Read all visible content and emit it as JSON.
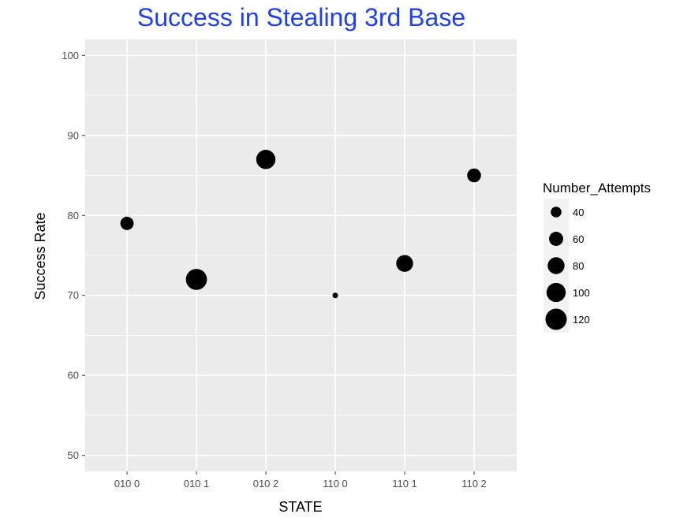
{
  "chart_data": {
    "type": "scatter",
    "title": "Success in Stealing 3rd Base",
    "xlabel": "STATE",
    "ylabel": "Success Rate",
    "categories": [
      "010 0",
      "010 1",
      "010 2",
      "110 0",
      "110 1",
      "110 2"
    ],
    "points": [
      {
        "x": "010 0",
        "y": 79,
        "size": 55
      },
      {
        "x": "010 1",
        "y": 72,
        "size": 118
      },
      {
        "x": "010 2",
        "y": 87,
        "size": 100
      },
      {
        "x": "110 0",
        "y": 70,
        "size": 20
      },
      {
        "x": "110 1",
        "y": 74,
        "size": 80
      },
      {
        "x": "110 2",
        "y": 85,
        "size": 58
      }
    ],
    "ylim": [
      48,
      102
    ],
    "yticks": [
      50,
      60,
      70,
      80,
      90,
      100
    ],
    "grid": true,
    "legend": {
      "title": "Number_Attempts",
      "values": [
        40,
        60,
        80,
        100,
        120
      ],
      "position": "right"
    },
    "colors": {
      "title": "#1f3ff0",
      "panel": "#ebebeb",
      "grid": "#ffffff",
      "points": "#000000"
    }
  }
}
